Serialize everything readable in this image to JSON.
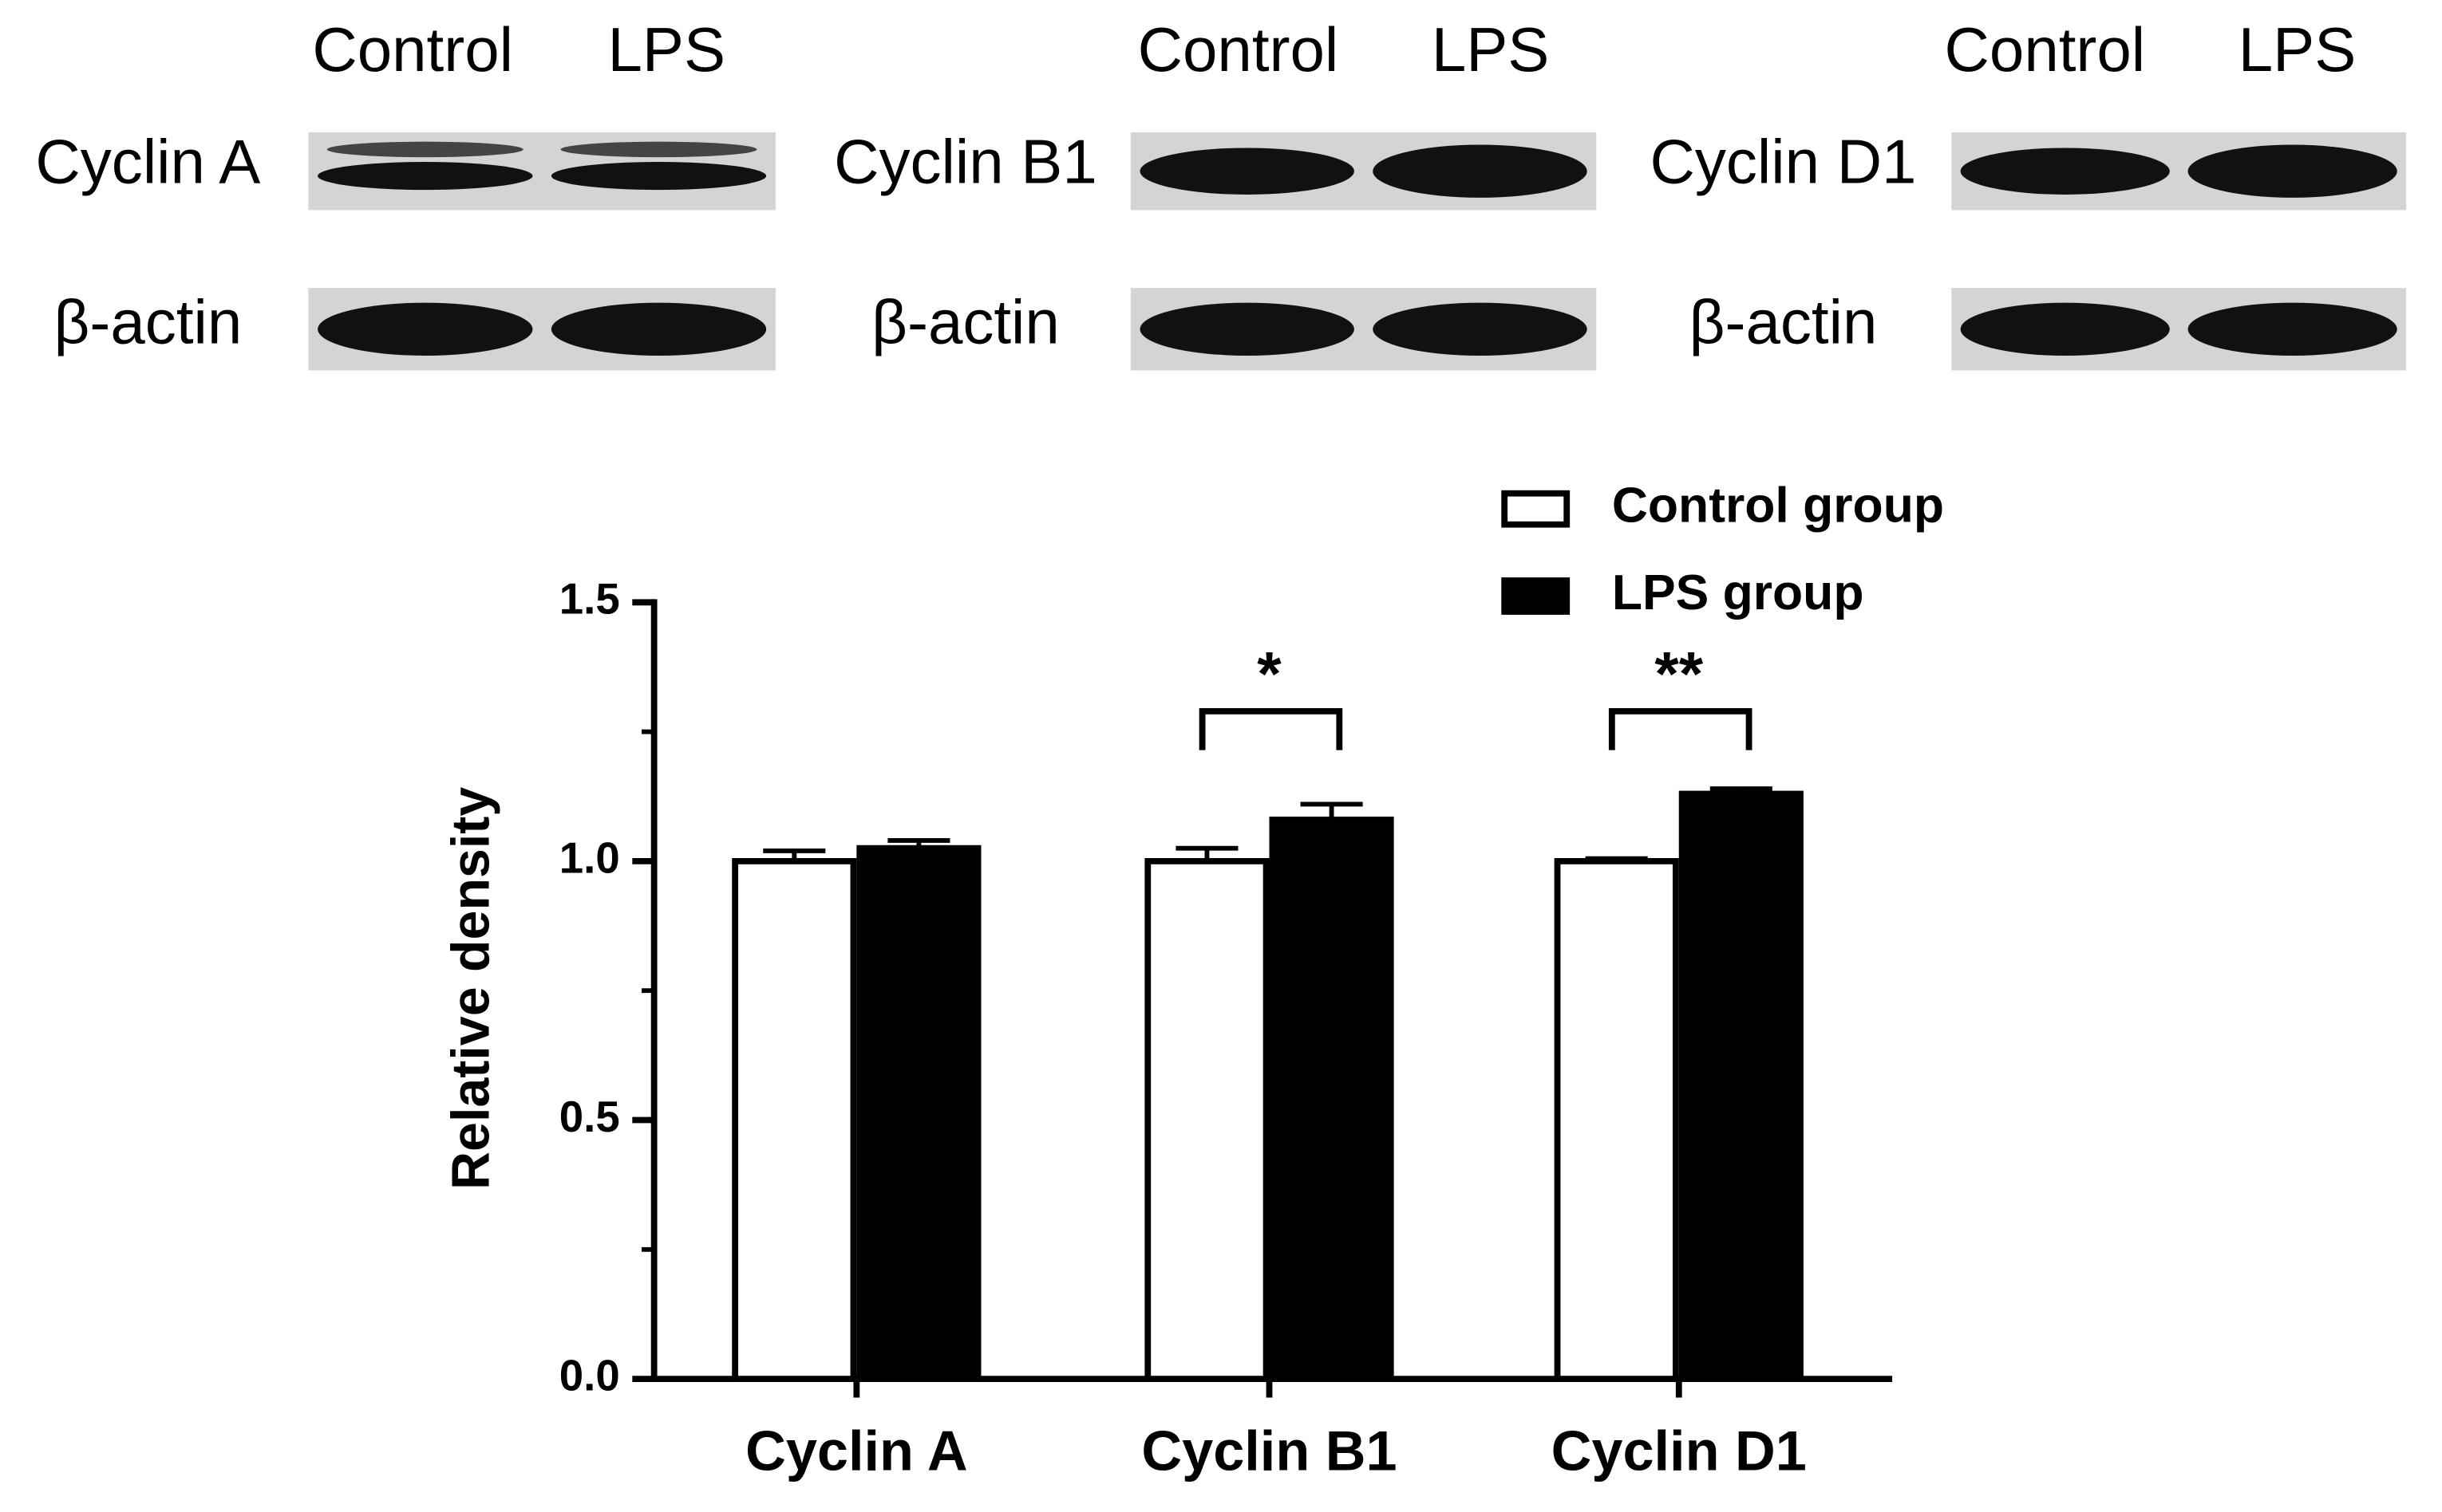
{
  "blots": [
    {
      "lanes": [
        "Control",
        "LPS"
      ],
      "proteins": [
        "Cyclin A",
        "β-actin"
      ]
    },
    {
      "lanes": [
        "Control",
        "LPS"
      ],
      "proteins": [
        "Cyclin B1",
        "β-actin"
      ]
    },
    {
      "lanes": [
        "Control",
        "LPS"
      ],
      "proteins": [
        "Cyclin D1",
        "β-actin"
      ]
    }
  ],
  "chart_data": {
    "type": "bar",
    "y_label": "Relative density",
    "categories": [
      "Cyclin A",
      "Cyclin B1",
      "Cyclin D1"
    ],
    "series": [
      {
        "name": "Control group",
        "color": "#ffffff",
        "values": [
          1.0,
          1.0,
          1.0
        ],
        "errors": [
          0.02,
          0.025,
          0.005
        ]
      },
      {
        "name": "LPS group",
        "color": "#000000",
        "values": [
          1.025,
          1.08,
          1.13
        ],
        "errors": [
          0.015,
          0.03,
          0.01
        ]
      }
    ],
    "ylim": [
      0,
      1.5
    ],
    "yticks": [
      {
        "value": 0,
        "label": "0.0"
      },
      {
        "value": 0.5,
        "label": "0.5"
      },
      {
        "value": 1,
        "label": "1.0"
      },
      {
        "value": 1.5,
        "label": "1.5"
      }
    ],
    "minor_yticks": [
      0.25,
      0.75,
      1.25
    ],
    "annotations": [
      {
        "text": "*",
        "category": "Cyclin B1"
      },
      {
        "text": "**",
        "category": "Cyclin D1"
      }
    ],
    "legend": "top-right"
  }
}
